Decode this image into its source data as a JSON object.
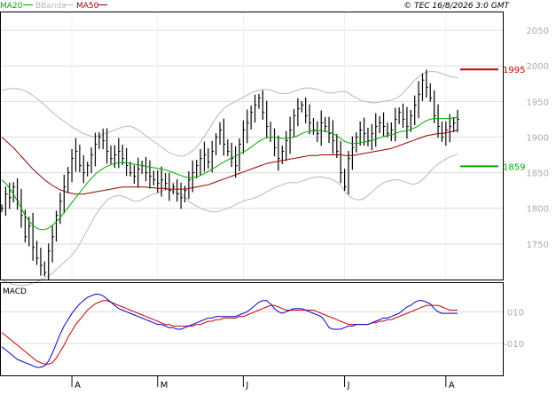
{
  "header": {
    "legend": [
      {
        "label": "MA20",
        "color": "#00aa00"
      },
      {
        "label": "BBands",
        "color": "#b8b8b8"
      },
      {
        "label": "MA50",
        "color": "#990000"
      }
    ],
    "copyright": "© TEC 16/8/2026 3:0 GMT"
  },
  "colors": {
    "background": "#ffffff",
    "plot_background": "#ffffff",
    "gridline": "#dcdcdc",
    "bars": "#000000",
    "ma20": "#00aa00",
    "ma50": "#990000",
    "bbands": "#b8b8b8",
    "resistance": "#cc0000",
    "support": "#00aa00",
    "macd_line": "#0000cc",
    "signal_line": "#cc0000",
    "axis_text": "#aaaaaa"
  },
  "chart_data": [
    {
      "type": "ohlc",
      "y_tick_labels": [
        "2050",
        "2000",
        "1950",
        "1900",
        "1850",
        "1800",
        "1750"
      ],
      "y_ticks": [
        2050,
        2000,
        1950,
        1900,
        1850,
        1800,
        1750
      ],
      "ylim": [
        1700,
        2075
      ],
      "x_tick_labels": [
        "A",
        "M",
        "J",
        "J",
        "A"
      ],
      "x_tick_index": [
        18,
        40,
        62,
        88,
        114
      ],
      "grid": true,
      "levels": [
        {
          "name": "resistance",
          "value": 1995,
          "label": "1995",
          "color": "#cc0000"
        },
        {
          "name": "support",
          "value": 1859,
          "label": "1859",
          "color": "#00aa00"
        }
      ],
      "close": [
        1800,
        1820,
        1815,
        1830,
        1810,
        1790,
        1760,
        1775,
        1745,
        1730,
        1720,
        1710,
        1740,
        1760,
        1790,
        1810,
        1830,
        1850,
        1870,
        1880,
        1860,
        1850,
        1860,
        1875,
        1890,
        1900,
        1895,
        1880,
        1870,
        1875,
        1880,
        1870,
        1860,
        1850,
        1845,
        1855,
        1860,
        1850,
        1845,
        1840,
        1835,
        1840,
        1835,
        1825,
        1830,
        1820,
        1815,
        1825,
        1840,
        1850,
        1860,
        1870,
        1875,
        1865,
        1880,
        1900,
        1910,
        1890,
        1880,
        1870,
        1860,
        1890,
        1910,
        1920,
        1935,
        1945,
        1955,
        1935,
        1915,
        1900,
        1885,
        1870,
        1880,
        1895,
        1910,
        1930,
        1940,
        1945,
        1930,
        1920,
        1910,
        1905,
        1920,
        1915,
        1905,
        1895,
        1880,
        1850,
        1830,
        1870,
        1885,
        1900,
        1910,
        1905,
        1895,
        1905,
        1915,
        1920,
        1915,
        1905,
        1910,
        1925,
        1935,
        1925,
        1915,
        1930,
        1945,
        1960,
        1980,
        1970,
        1955,
        1930,
        1915,
        1900,
        1910,
        1915,
        1920,
        1925
      ],
      "series": [
        {
          "name": "MA20",
          "values": [
            1840,
            1835,
            1828,
            1820,
            1810,
            1800,
            1790,
            1782,
            1776,
            1772,
            1770,
            1770,
            1772,
            1776,
            1781,
            1787,
            1794,
            1801,
            1808,
            1815,
            1822,
            1829,
            1836,
            1842,
            1848,
            1852,
            1856,
            1859,
            1861,
            1863,
            1864,
            1864,
            1864,
            1863,
            1862,
            1861,
            1860,
            1859,
            1858,
            1857,
            1856,
            1855,
            1854,
            1852,
            1850,
            1848,
            1846,
            1844,
            1843,
            1843,
            1844,
            1846,
            1849,
            1852,
            1855,
            1858,
            1862,
            1865,
            1868,
            1871,
            1873,
            1876,
            1879,
            1882,
            1886,
            1890,
            1894,
            1897,
            1899,
            1900,
            1900,
            1899,
            1898,
            1898,
            1899,
            1900,
            1902,
            1905,
            1907,
            1908,
            1909,
            1909,
            1909,
            1908,
            1907,
            1905,
            1902,
            1898,
            1894,
            1892,
            1891,
            1891,
            1892,
            1893,
            1894,
            1895,
            1897,
            1899,
            1901,
            1902,
            1903,
            1905,
            1907,
            1908,
            1909,
            1911,
            1913,
            1916,
            1920,
            1923,
            1925,
            1926,
            1926,
            1926,
            1926,
            1926,
            1927,
            1928
          ]
        },
        {
          "name": "MA50",
          "values": [
            1900,
            1895,
            1890,
            1885,
            1879,
            1873,
            1867,
            1861,
            1855,
            1850,
            1845,
            1840,
            1836,
            1832,
            1829,
            1826,
            1824,
            1822,
            1821,
            1820,
            1820,
            1820,
            1821,
            1822,
            1823,
            1824,
            1825,
            1826,
            1827,
            1828,
            1829,
            1830,
            1830,
            1830,
            1830,
            1830,
            1830,
            1830,
            1829,
            1829,
            1828,
            1828,
            1828,
            1827,
            1827,
            1827,
            1827,
            1827,
            1828,
            1829,
            1830,
            1831,
            1832,
            1833,
            1835,
            1837,
            1839,
            1841,
            1843,
            1845,
            1847,
            1849,
            1851,
            1853,
            1855,
            1857,
            1859,
            1861,
            1863,
            1864,
            1865,
            1866,
            1867,
            1868,
            1869,
            1870,
            1871,
            1872,
            1873,
            1874,
            1874,
            1874,
            1875,
            1875,
            1875,
            1875,
            1875,
            1875,
            1874,
            1874,
            1874,
            1875,
            1876,
            1877,
            1878,
            1879,
            1880,
            1881,
            1882,
            1883,
            1884,
            1886,
            1888,
            1890,
            1892,
            1894,
            1896,
            1898,
            1900,
            1902,
            1903,
            1904,
            1905,
            1905,
            1906,
            1907,
            1908,
            1910
          ]
        },
        {
          "name": "BBands upper",
          "values": [
            1965,
            1967,
            1968,
            1968,
            1968,
            1967,
            1965,
            1962,
            1958,
            1954,
            1950,
            1945,
            1940,
            1935,
            1930,
            1926,
            1922,
            1918,
            1914,
            1911,
            1908,
            1905,
            1903,
            1901,
            1900,
            1902,
            1904,
            1906,
            1908,
            1910,
            1912,
            1914,
            1915,
            1915,
            1913,
            1910,
            1906,
            1902,
            1898,
            1894,
            1890,
            1886,
            1882,
            1878,
            1876,
            1874,
            1873,
            1874,
            1877,
            1881,
            1886,
            1893,
            1901,
            1909,
            1918,
            1927,
            1934,
            1940,
            1944,
            1947,
            1950,
            1953,
            1956,
            1959,
            1962,
            1964,
            1966,
            1967,
            1967,
            1966,
            1964,
            1962,
            1961,
            1961,
            1962,
            1964,
            1966,
            1968,
            1969,
            1969,
            1968,
            1967,
            1965,
            1963,
            1962,
            1962,
            1963,
            1964,
            1964,
            1962,
            1958,
            1955,
            1952,
            1950,
            1949,
            1948,
            1948,
            1949,
            1950,
            1951,
            1952,
            1954,
            1957,
            1962,
            1968,
            1974,
            1980,
            1985,
            1989,
            1991,
            1992,
            1992,
            1991,
            1989,
            1987,
            1985,
            1984,
            1983
          ]
        },
        {
          "name": "BBands lower",
          "values": [
            1700,
            1697,
            1695,
            1693,
            1692,
            1692,
            1692,
            1693,
            1695,
            1697,
            1699,
            1702,
            1705,
            1709,
            1714,
            1719,
            1724,
            1729,
            1734,
            1741,
            1750,
            1760,
            1770,
            1780,
            1790,
            1798,
            1805,
            1811,
            1815,
            1817,
            1818,
            1817,
            1815,
            1812,
            1810,
            1810,
            1812,
            1815,
            1818,
            1820,
            1822,
            1824,
            1826,
            1826,
            1824,
            1822,
            1820,
            1816,
            1810,
            1806,
            1803,
            1800,
            1798,
            1796,
            1795,
            1795,
            1796,
            1798,
            1800,
            1802,
            1805,
            1808,
            1810,
            1812,
            1813,
            1815,
            1817,
            1820,
            1823,
            1826,
            1829,
            1831,
            1833,
            1835,
            1836,
            1836,
            1836,
            1838,
            1840,
            1842,
            1843,
            1844,
            1844,
            1843,
            1842,
            1840,
            1837,
            1832,
            1824,
            1818,
            1814,
            1812,
            1812,
            1814,
            1818,
            1823,
            1828,
            1832,
            1836,
            1838,
            1839,
            1840,
            1840,
            1838,
            1836,
            1834,
            1834,
            1836,
            1840,
            1846,
            1852,
            1858,
            1862,
            1866,
            1869,
            1872,
            1874,
            1876
          ]
        }
      ]
    },
    {
      "type": "line",
      "title": "MACD",
      "y_tick_labels": [
        "010",
        "-010"
      ],
      "y_ticks": [
        10,
        -10
      ],
      "ylim": [
        -30,
        28
      ],
      "grid": true,
      "series": [
        {
          "name": "MACD",
          "values": [
            -12,
            -14,
            -16,
            -18,
            -20,
            -21,
            -22,
            -23,
            -24,
            -25,
            -25,
            -24,
            -21,
            -16,
            -10,
            -4,
            1,
            5,
            9,
            12,
            15,
            17,
            19,
            20,
            21,
            21,
            20,
            18,
            16,
            14,
            12,
            11,
            10,
            9,
            8,
            7,
            6,
            5,
            4,
            3,
            2,
            2,
            1,
            0,
            0,
            -1,
            -1,
            0,
            1,
            2,
            3,
            4,
            5,
            6,
            6,
            7,
            7,
            7,
            7,
            7,
            7,
            8,
            9,
            10,
            12,
            14,
            16,
            17,
            17,
            15,
            12,
            10,
            9,
            10,
            11,
            12,
            12,
            12,
            11,
            10,
            9,
            8,
            7,
            4,
            0,
            -1,
            -1,
            -1,
            0,
            1,
            1,
            2,
            2,
            2,
            2,
            3,
            4,
            5,
            6,
            6,
            7,
            8,
            9,
            11,
            13,
            14,
            16,
            17,
            17,
            16,
            15,
            12,
            10,
            9,
            9,
            9,
            9,
            9
          ]
        },
        {
          "name": "Signal",
          "values": [
            -3,
            -5,
            -7,
            -9,
            -11,
            -13,
            -15,
            -17,
            -19,
            -21,
            -22,
            -23,
            -23,
            -22,
            -19,
            -15,
            -11,
            -6,
            -2,
            2,
            5,
            8,
            11,
            13,
            15,
            16,
            17,
            17,
            16,
            15,
            14,
            13,
            12,
            11,
            10,
            9,
            8,
            7,
            6,
            5,
            4,
            3,
            2,
            2,
            1,
            1,
            1,
            1,
            1,
            1,
            2,
            2,
            3,
            4,
            4,
            5,
            5,
            6,
            6,
            6,
            6,
            7,
            7,
            8,
            9,
            10,
            11,
            12,
            13,
            14,
            14,
            13,
            12,
            11,
            11,
            11,
            11,
            11,
            11,
            11,
            11,
            10,
            9,
            8,
            7,
            6,
            5,
            4,
            3,
            2,
            2,
            2,
            2,
            2,
            2,
            3,
            3,
            4,
            4,
            5,
            5,
            6,
            7,
            8,
            9,
            10,
            11,
            12,
            13,
            14,
            14,
            14,
            14,
            13,
            12,
            11,
            11,
            11
          ]
        }
      ]
    }
  ]
}
